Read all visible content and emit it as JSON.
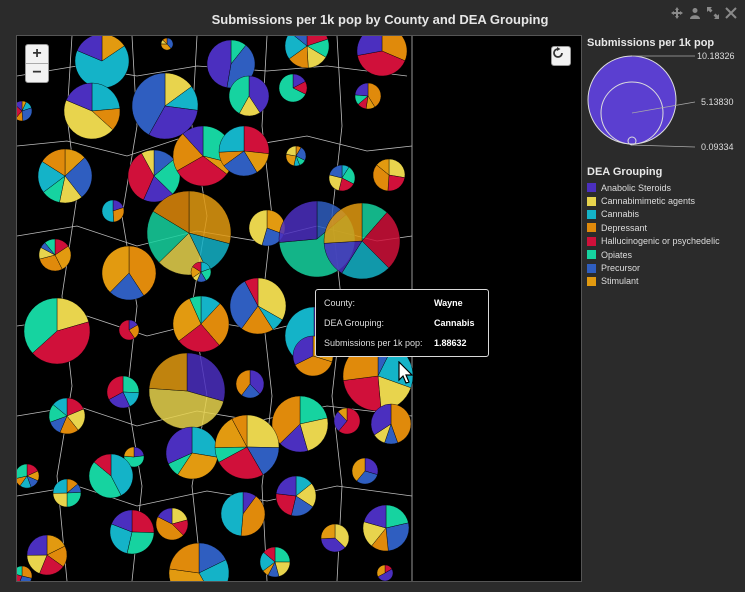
{
  "title": "Submissions per 1k pop by County and DEA Grouping",
  "window_icons": [
    "move-icon",
    "user-icon",
    "expand-icon",
    "close-icon"
  ],
  "map": {
    "zoom_in_label": "+",
    "zoom_out_label": "−",
    "reset_icon": "refresh-icon"
  },
  "tooltip": {
    "county_label": "County:",
    "county_value": "Wayne",
    "group_label": "DEA Grouping:",
    "group_value": "Cannabis",
    "metric_label": "Submissions per 1k pop:",
    "metric_value": "1.88632"
  },
  "size_legend": {
    "title": "Submissions per 1k pop",
    "max": "10.18326",
    "mid": "5.13830",
    "min": "0.09334",
    "color": "#5b3fd0"
  },
  "color_legend": {
    "title": "DEA Grouping",
    "items": [
      {
        "label": "Anabolic Steroids",
        "color": "#4b2fbf"
      },
      {
        "label": "Cannabimimetic agents",
        "color": "#e8d44d"
      },
      {
        "label": "Cannabis",
        "color": "#14b3c8"
      },
      {
        "label": "Depressant",
        "color": "#e08a0b"
      },
      {
        "label": "Hallucinogenic or psychedelic",
        "color": "#d0103a"
      },
      {
        "label": "Opiates",
        "color": "#16d3a0"
      },
      {
        "label": "Precursor",
        "color": "#2f5ec0"
      },
      {
        "label": "Stimulant",
        "color": "#e29a10"
      }
    ]
  }
}
